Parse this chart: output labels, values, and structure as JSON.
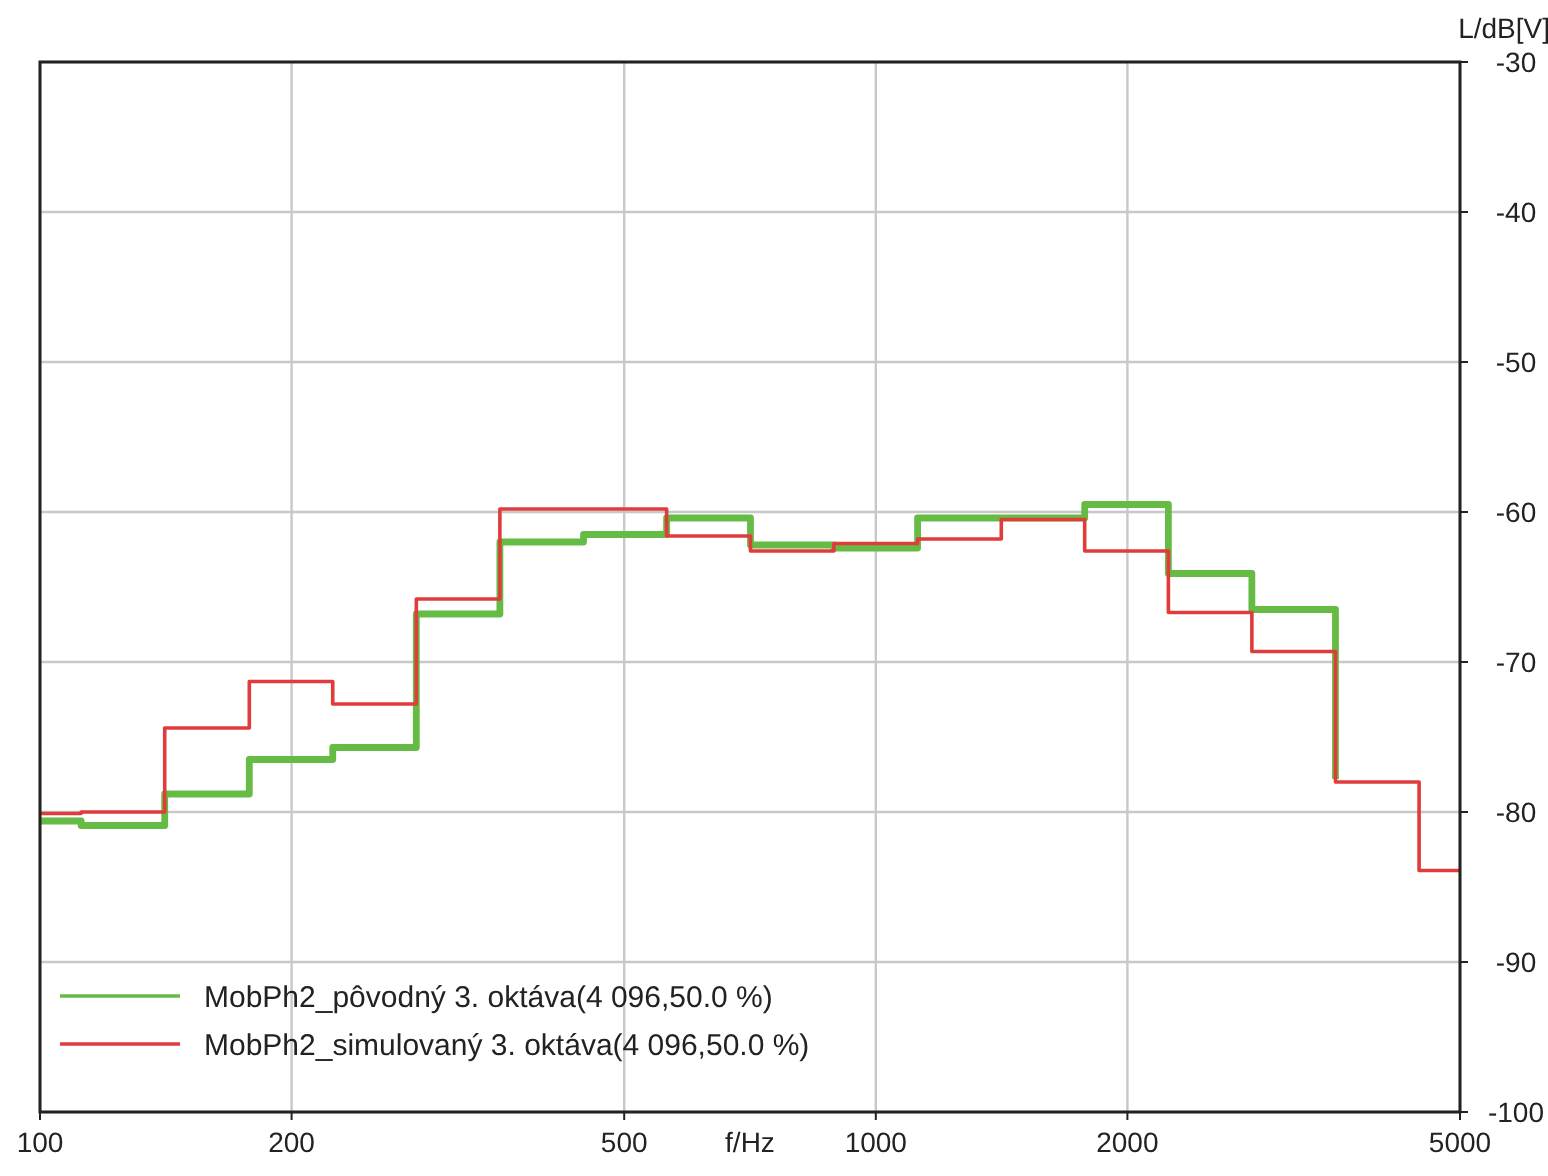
{
  "chart_data": {
    "type": "step",
    "xlabel": "f/Hz",
    "ylabel": "L/dB[V]",
    "log": "x",
    "x": [
      100,
      112,
      141,
      178,
      224,
      282,
      355,
      447,
      562,
      708,
      891,
      1122,
      1413,
      1778,
      2239,
      2818,
      3548,
      4467,
      5000
    ],
    "series": [
      {
        "name": "MobPh2_pôvodný 3. oktáva(4 096,50.0 %)",
        "color": "#66bb44",
        "values": [
          -80.6,
          -80.9,
          -78.8,
          -76.5,
          -75.7,
          -66.8,
          -62.0,
          -61.5,
          -60.4,
          -62.2,
          -62.4,
          -60.4,
          -60.4,
          -59.5,
          -64.1,
          -66.5,
          -77.8,
          null,
          null
        ]
      },
      {
        "name": "MobPh2_simulovaný 3. oktáva(4 096,50.0 %)",
        "color": "#e03c3c",
        "values": [
          -80.1,
          -80.0,
          -74.4,
          -71.3,
          -72.8,
          -65.8,
          -59.8,
          -59.8,
          -61.6,
          -62.6,
          -62.1,
          -61.8,
          -60.5,
          -62.6,
          -66.7,
          -69.3,
          -78.0,
          -83.9,
          -83.9
        ]
      }
    ],
    "xlim": [
      100,
      5000
    ],
    "xticks": [
      100,
      200,
      500,
      1000,
      2000,
      5000
    ],
    "ylim": [
      -100,
      -30
    ],
    "yticks": [
      -30,
      -40,
      -50,
      -60,
      -70,
      -80,
      -90,
      -100
    ],
    "grid": true,
    "legend": "bottom left"
  }
}
